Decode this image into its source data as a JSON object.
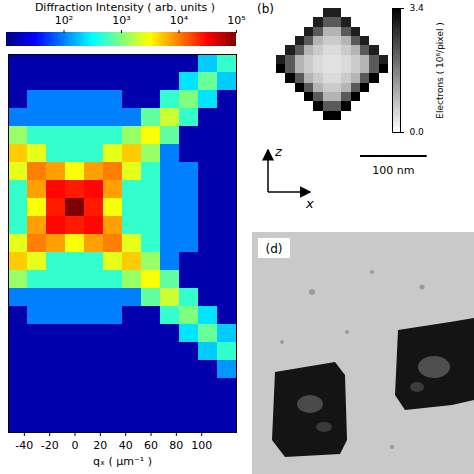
{
  "chart_data": [
    {
      "type": "heatmap",
      "color": "jet",
      "colorbar": {
        "label": "Diffraction Intensity ( arb. units )",
        "log": true,
        "range": [
          10,
          100000
        ],
        "ticks": [
          {
            "value": 100,
            "label": "10²"
          },
          {
            "value": 1000,
            "label": "10³"
          },
          {
            "value": 10000,
            "label": "10⁴"
          },
          {
            "value": 100000,
            "label": "10⁵"
          }
        ]
      },
      "x_label": "qₓ ( μm⁻¹ )",
      "xlim": [
        -52.5,
        127.5
      ],
      "xticks": [
        -40,
        -20,
        0,
        20,
        40,
        60,
        80,
        100
      ],
      "ylim": [
        -187.5,
        127.5
      ],
      "tick_labels": "x",
      "x_bins": [
        -52.5,
        -37.5,
        -22.5,
        -7.5,
        7.5,
        22.5,
        37.5,
        52.5,
        67.5,
        82.5,
        97.5,
        112.5,
        127.5
      ],
      "y_bins": [
        127.5,
        112.5,
        97.5,
        82.5,
        67.5,
        52.5,
        37.5,
        22.5,
        7.5,
        -7.5,
        -22.5,
        -37.5,
        -52.5,
        -67.5,
        -82.5,
        -97.5,
        -112.5,
        -127.5,
        -142.5,
        -157.5,
        -172.5,
        -187.5
      ],
      "values": [
        [
          15,
          15,
          15,
          15,
          15,
          15,
          15,
          15,
          15,
          15,
          200,
          500
        ],
        [
          15,
          15,
          15,
          15,
          15,
          15,
          15,
          15,
          15,
          250,
          800,
          200
        ],
        [
          15,
          100,
          100,
          100,
          100,
          100,
          15,
          15,
          500,
          1000,
          250,
          15
        ],
        [
          100,
          100,
          100,
          100,
          100,
          100,
          100,
          750,
          2000,
          500,
          15,
          15
        ],
        [
          1250,
          500,
          500,
          500,
          500,
          500,
          1250,
          3000,
          750,
          15,
          15,
          15
        ],
        [
          5000,
          2500,
          500,
          500,
          500,
          2500,
          5000,
          1250,
          100,
          15,
          15,
          15
        ],
        [
          2500,
          10000,
          7500,
          3000,
          7500,
          10000,
          2500,
          500,
          100,
          100,
          15,
          15
        ],
        [
          500,
          7500,
          30000,
          25000,
          30000,
          7500,
          500,
          500,
          100,
          100,
          15,
          15
        ],
        [
          500,
          3000,
          25000,
          100000,
          25000,
          3000,
          500,
          500,
          100,
          100,
          15,
          15
        ],
        [
          500,
          7500,
          30000,
          25000,
          30000,
          7500,
          500,
          500,
          100,
          100,
          15,
          15
        ],
        [
          2500,
          10000,
          7500,
          3000,
          7500,
          10000,
          2500,
          500,
          100,
          100,
          15,
          15
        ],
        [
          5000,
          2500,
          500,
          500,
          500,
          2500,
          5000,
          1250,
          100,
          15,
          15,
          15
        ],
        [
          1250,
          500,
          500,
          500,
          500,
          500,
          1250,
          3000,
          750,
          15,
          15,
          15
        ],
        [
          100,
          100,
          100,
          100,
          100,
          100,
          100,
          750,
          2000,
          500,
          15,
          15
        ],
        [
          15,
          100,
          100,
          100,
          100,
          100,
          15,
          15,
          500,
          1000,
          250,
          15
        ],
        [
          15,
          15,
          15,
          15,
          15,
          15,
          15,
          15,
          15,
          250,
          800,
          200
        ],
        [
          15,
          15,
          15,
          15,
          15,
          15,
          15,
          15,
          15,
          15,
          200,
          500
        ],
        [
          15,
          15,
          15,
          15,
          15,
          15,
          15,
          15,
          15,
          15,
          15,
          125
        ],
        [
          15,
          15,
          15,
          15,
          15,
          15,
          15,
          15,
          15,
          15,
          15,
          15
        ],
        [
          15,
          15,
          15,
          15,
          15,
          15,
          15,
          15,
          15,
          15,
          15,
          15
        ],
        [
          15,
          15,
          15,
          15,
          15,
          15,
          15,
          15,
          15,
          15,
          15,
          15
        ]
      ]
    },
    {
      "type": "heatmap",
      "panel_label": "(b)",
      "color": "gray_r",
      "colorbar": {
        "label": "Electrons ( 10⁶/pixel )",
        "range": [
          0,
          3.4
        ],
        "ticks": [
          {
            "value": 0,
            "label": "0.0"
          },
          3.4
        ]
      },
      "tick_labels": false,
      "axis_arrows": {
        "vertical": "z",
        "horizontal": "x"
      },
      "scale_bar": {
        "length": 100,
        "label": "100 nm"
      },
      "x_bins": [
        -84,
        -70,
        -56,
        -42,
        -28,
        -14,
        0,
        14,
        28,
        42,
        56,
        70,
        84
      ],
      "z_bins": [
        84,
        70,
        56,
        42,
        28,
        14,
        0,
        -14,
        -28,
        -42,
        -56,
        -70,
        -84
      ],
      "values": [
        [
          0,
          0,
          0,
          0,
          0,
          3,
          3,
          0,
          0,
          0,
          0,
          0
        ],
        [
          0,
          0,
          0,
          0,
          3,
          2.2,
          2.2,
          3,
          0,
          0,
          0,
          0
        ],
        [
          0,
          0,
          0,
          3,
          2.2,
          1,
          1,
          2.2,
          3,
          0,
          0,
          0
        ],
        [
          0,
          0,
          3,
          2.2,
          1,
          0.7,
          0.7,
          1,
          2.2,
          3,
          0,
          0
        ],
        [
          0,
          3,
          2.2,
          1,
          0.7,
          0.5,
          0.5,
          0.7,
          1,
          2.2,
          3,
          0
        ],
        [
          3,
          2.2,
          1,
          0.7,
          0.5,
          0.4,
          0.4,
          0.5,
          0.7,
          1,
          2.2,
          3
        ],
        [
          3.4,
          2.2,
          1,
          0.7,
          0.5,
          0.4,
          0.4,
          0.5,
          0.7,
          1,
          2.2,
          3.4
        ],
        [
          0,
          3.4,
          2.2,
          1,
          0.7,
          0.5,
          0.5,
          0.7,
          1,
          2.2,
          3.4,
          0
        ],
        [
          0,
          0,
          3.4,
          2.2,
          1,
          0.7,
          0.7,
          1,
          2.2,
          3.4,
          0,
          0
        ],
        [
          0,
          0,
          0,
          3.4,
          2.2,
          1,
          1,
          2.2,
          3.4,
          0,
          0,
          0
        ],
        [
          0,
          0,
          0,
          0,
          3.4,
          2.2,
          2.2,
          3.4,
          0,
          0,
          0,
          0
        ],
        [
          0,
          0,
          0,
          0,
          0,
          3.4,
          3.4,
          0,
          0,
          0,
          0,
          0
        ]
      ]
    }
  ],
  "images": [
    {
      "panel_label": "(d)"
    }
  ]
}
